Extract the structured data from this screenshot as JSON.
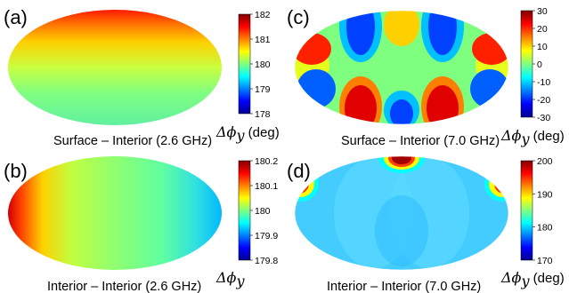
{
  "colormap": [
    "#00008f",
    "#0000ff",
    "#0080ff",
    "#00ffff",
    "#80ff80",
    "#ffff00",
    "#ff8000",
    "#ff0000",
    "#800000"
  ],
  "chart_data": [
    {
      "type": "heatmap",
      "panel_label": "(a)",
      "caption": "Surface – Interior (2.6 GHz)",
      "colorbar_label": "Δϕ",
      "colorbar_subscript": "y",
      "colorbar_unit": " (deg)",
      "clim": [
        178,
        182
      ],
      "ticks": [
        "182",
        "181",
        "180",
        "179",
        "178"
      ],
      "tick_values": [
        182,
        181,
        180,
        179,
        178
      ],
      "pattern": "latitude gradient: ~182 at top edge, ~180 at equator, ~179.3 at bottom"
    },
    {
      "type": "heatmap",
      "panel_label": "(b)",
      "caption": "Interior – Interior (2.6 GHz)",
      "colorbar_label": "Δϕ",
      "colorbar_subscript": "y",
      "colorbar_unit": "",
      "clim": [
        179.8,
        180.2
      ],
      "ticks": [
        "180.2",
        "180.1",
        "180",
        "179.9",
        "179.8"
      ],
      "tick_values": [
        180.2,
        180.1,
        180.0,
        179.9,
        179.8
      ],
      "pattern": "longitude gradient: ~180.2 at left edge, ~180 center, ~179.85 at right edge"
    },
    {
      "type": "heatmap",
      "panel_label": "(c)",
      "caption": "Surface – Interior (7.0 GHz)",
      "colorbar_label": "Δϕ",
      "colorbar_subscript": "y",
      "colorbar_unit": " (deg)",
      "clim": [
        -30,
        30
      ],
      "ticks": [
        "30",
        "20",
        "10",
        "0",
        "-10",
        "-20",
        "-30"
      ],
      "tick_values": [
        30,
        20,
        10,
        0,
        -10,
        -20,
        -30
      ],
      "pattern": "alternating lobes: top row red/blue/blue/red, bottom row blue/red/red/blue, ~±30"
    },
    {
      "type": "heatmap",
      "panel_label": "(d)",
      "caption": "Interior – Interior (7.0 GHz)",
      "colorbar_label": "Δϕ",
      "colorbar_subscript": "y",
      "colorbar_unit": " (deg)",
      "clim": [
        170,
        200
      ],
      "ticks": [
        "200",
        "190",
        "180",
        "170"
      ],
      "tick_values": [
        200,
        190,
        180,
        170
      ],
      "pattern": "mostly ~180 with hot spots (~200) at top center and upper-left/upper-right edges"
    }
  ]
}
